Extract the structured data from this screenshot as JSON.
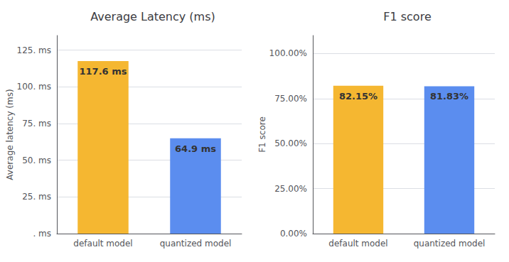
{
  "chart_data": [
    {
      "type": "bar",
      "title": "Average Latency (ms)",
      "categories": [
        "default model",
        "quantized model"
      ],
      "values": [
        117.6,
        64.9
      ],
      "value_labels": [
        "117.6 ms",
        "64.9 ms"
      ],
      "colors": [
        "#F5B731",
        "#5B8DEF"
      ],
      "ylabel": "Average latency (ms)",
      "ylim": [
        0,
        135
      ],
      "yticks": [
        {
          "value": 0,
          "label": ". ms"
        },
        {
          "value": 25,
          "label": "25. ms"
        },
        {
          "value": 50,
          "label": "50. ms"
        },
        {
          "value": 75,
          "label": "75. ms"
        },
        {
          "value": 100,
          "label": "100. ms"
        },
        {
          "value": 125,
          "label": "125. ms"
        }
      ],
      "grid": true,
      "data_labels": true
    },
    {
      "type": "bar",
      "title": "F1 score",
      "categories": [
        "default model",
        "quantized model"
      ],
      "values": [
        0.8215,
        0.8183
      ],
      "value_labels": [
        "82.15%",
        "81.83%"
      ],
      "colors": [
        "#F5B731",
        "#5B8DEF"
      ],
      "ylabel": "F1 score",
      "ylim": [
        0,
        1.1
      ],
      "yticks": [
        {
          "value": 0.0,
          "label": "0.00%"
        },
        {
          "value": 0.25,
          "label": "25.00%"
        },
        {
          "value": 0.5,
          "label": "50.00%"
        },
        {
          "value": 0.75,
          "label": "75.00%"
        },
        {
          "value": 1.0,
          "label": "100.00%"
        }
      ],
      "grid": true,
      "data_labels": true
    }
  ]
}
